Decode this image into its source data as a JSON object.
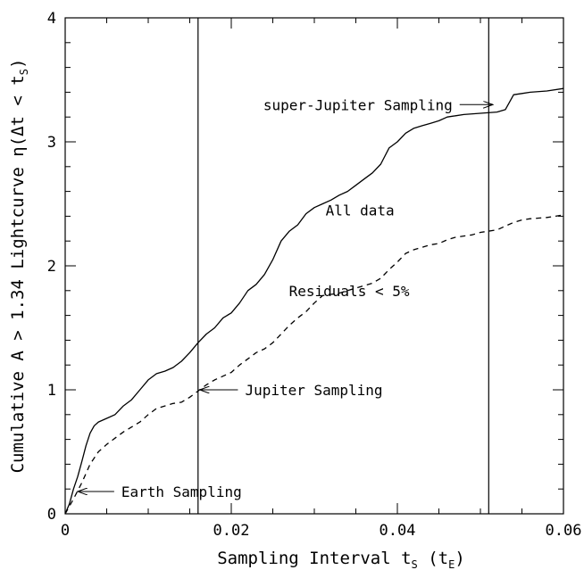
{
  "chart_data": {
    "type": "line",
    "xlabel": "Sampling Interval t",
    "xlabel_sub": "S",
    "xlabel_unit_open": " (t",
    "xlabel_unit_sub": "E",
    "xlabel_unit_close": ")",
    "ylabel": "Cumulative A > 1.34 Lightcurve η(Δt < t",
    "ylabel_sub": "S",
    "ylabel_close": ")",
    "xlim": [
      0,
      0.06
    ],
    "ylim": [
      0,
      4
    ],
    "x_ticks": [
      0,
      0.02,
      0.04,
      0.06
    ],
    "x_tick_labels": [
      "0",
      "0.02",
      "0.04",
      "0.06"
    ],
    "y_ticks": [
      0,
      1,
      2,
      3,
      4
    ],
    "y_tick_labels": [
      "0",
      "1",
      "2",
      "3",
      "4"
    ],
    "vertical_lines": [
      0.016,
      0.051
    ],
    "series": [
      {
        "label": "All data",
        "style": "solid",
        "points": [
          [
            0,
            0
          ],
          [
            0.0005,
            0.08
          ],
          [
            0.001,
            0.2
          ],
          [
            0.0015,
            0.3
          ],
          [
            0.002,
            0.42
          ],
          [
            0.0025,
            0.55
          ],
          [
            0.003,
            0.65
          ],
          [
            0.0035,
            0.71
          ],
          [
            0.004,
            0.74
          ],
          [
            0.005,
            0.77
          ],
          [
            0.006,
            0.8
          ],
          [
            0.007,
            0.87
          ],
          [
            0.008,
            0.92
          ],
          [
            0.009,
            1.0
          ],
          [
            0.01,
            1.08
          ],
          [
            0.011,
            1.13
          ],
          [
            0.012,
            1.15
          ],
          [
            0.013,
            1.18
          ],
          [
            0.014,
            1.23
          ],
          [
            0.015,
            1.3
          ],
          [
            0.016,
            1.38
          ],
          [
            0.017,
            1.45
          ],
          [
            0.018,
            1.5
          ],
          [
            0.019,
            1.58
          ],
          [
            0.02,
            1.62
          ],
          [
            0.021,
            1.7
          ],
          [
            0.022,
            1.8
          ],
          [
            0.023,
            1.85
          ],
          [
            0.024,
            1.93
          ],
          [
            0.025,
            2.05
          ],
          [
            0.026,
            2.2
          ],
          [
            0.027,
            2.28
          ],
          [
            0.028,
            2.33
          ],
          [
            0.029,
            2.42
          ],
          [
            0.03,
            2.47
          ],
          [
            0.031,
            2.5
          ],
          [
            0.032,
            2.53
          ],
          [
            0.033,
            2.57
          ],
          [
            0.034,
            2.6
          ],
          [
            0.035,
            2.65
          ],
          [
            0.036,
            2.7
          ],
          [
            0.037,
            2.75
          ],
          [
            0.038,
            2.82
          ],
          [
            0.039,
            2.95
          ],
          [
            0.04,
            3.0
          ],
          [
            0.041,
            3.07
          ],
          [
            0.042,
            3.11
          ],
          [
            0.043,
            3.13
          ],
          [
            0.044,
            3.15
          ],
          [
            0.045,
            3.17
          ],
          [
            0.046,
            3.2
          ],
          [
            0.047,
            3.21
          ],
          [
            0.048,
            3.22
          ],
          [
            0.05,
            3.23
          ],
          [
            0.052,
            3.24
          ],
          [
            0.053,
            3.26
          ],
          [
            0.054,
            3.38
          ],
          [
            0.055,
            3.39
          ],
          [
            0.056,
            3.4
          ],
          [
            0.058,
            3.41
          ],
          [
            0.06,
            3.43
          ]
        ]
      },
      {
        "label": "Residuals < 5%",
        "style": "dashed",
        "points": [
          [
            0,
            0
          ],
          [
            0.001,
            0.12
          ],
          [
            0.002,
            0.25
          ],
          [
            0.003,
            0.4
          ],
          [
            0.004,
            0.5
          ],
          [
            0.005,
            0.56
          ],
          [
            0.006,
            0.61
          ],
          [
            0.007,
            0.66
          ],
          [
            0.008,
            0.7
          ],
          [
            0.009,
            0.74
          ],
          [
            0.01,
            0.8
          ],
          [
            0.011,
            0.85
          ],
          [
            0.012,
            0.87
          ],
          [
            0.013,
            0.89
          ],
          [
            0.014,
            0.9
          ],
          [
            0.015,
            0.94
          ],
          [
            0.016,
            0.99
          ],
          [
            0.017,
            1.04
          ],
          [
            0.018,
            1.08
          ],
          [
            0.019,
            1.11
          ],
          [
            0.02,
            1.14
          ],
          [
            0.021,
            1.2
          ],
          [
            0.022,
            1.25
          ],
          [
            0.023,
            1.3
          ],
          [
            0.024,
            1.33
          ],
          [
            0.025,
            1.38
          ],
          [
            0.026,
            1.45
          ],
          [
            0.027,
            1.52
          ],
          [
            0.028,
            1.58
          ],
          [
            0.029,
            1.63
          ],
          [
            0.03,
            1.7
          ],
          [
            0.031,
            1.76
          ],
          [
            0.032,
            1.77
          ],
          [
            0.033,
            1.78
          ],
          [
            0.034,
            1.8
          ],
          [
            0.035,
            1.82
          ],
          [
            0.036,
            1.84
          ],
          [
            0.037,
            1.86
          ],
          [
            0.038,
            1.9
          ],
          [
            0.039,
            1.97
          ],
          [
            0.04,
            2.03
          ],
          [
            0.041,
            2.1
          ],
          [
            0.042,
            2.13
          ],
          [
            0.043,
            2.15
          ],
          [
            0.044,
            2.17
          ],
          [
            0.045,
            2.18
          ],
          [
            0.046,
            2.21
          ],
          [
            0.047,
            2.23
          ],
          [
            0.048,
            2.24
          ],
          [
            0.049,
            2.25
          ],
          [
            0.05,
            2.27
          ],
          [
            0.051,
            2.28
          ],
          [
            0.052,
            2.29
          ],
          [
            0.053,
            2.32
          ],
          [
            0.054,
            2.35
          ],
          [
            0.055,
            2.37
          ],
          [
            0.056,
            2.38
          ],
          [
            0.058,
            2.39
          ],
          [
            0.06,
            2.41
          ]
        ]
      }
    ],
    "annotations": [
      {
        "text": "super-Jupiter Sampling",
        "arrow_to": [
          0.0515,
          3.3
        ],
        "arrow_from": [
          0.0475,
          3.3
        ]
      },
      {
        "text": "Jupiter Sampling",
        "arrow_to": [
          0.0162,
          1.0
        ],
        "arrow_from": [
          0.0208,
          1.0
        ]
      },
      {
        "text": "Earth Sampling",
        "arrow_to": [
          0.0015,
          0.18
        ],
        "arrow_from": [
          0.0059,
          0.18
        ]
      },
      {
        "text": "All data",
        "at": [
          0.0355,
          2.45
        ]
      },
      {
        "text": "Residuals < 5%",
        "at": [
          0.0342,
          1.8
        ]
      }
    ]
  }
}
